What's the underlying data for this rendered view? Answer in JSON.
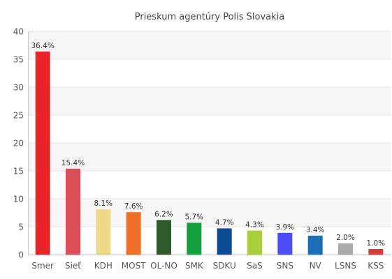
{
  "chart_data": {
    "type": "bar",
    "title": "Prieskum agentúry Polis Slovakia",
    "xlabel": "",
    "ylabel": "",
    "ylim": [
      0,
      40
    ],
    "yticks": [
      0,
      5,
      10,
      15,
      20,
      25,
      30,
      35,
      40
    ],
    "grid": true,
    "legend": "none",
    "categories": [
      "Smer",
      "Sieť",
      "KDH",
      "MOST",
      "OL-NO",
      "SMK",
      "SDKU",
      "SaS",
      "SNS",
      "NV",
      "LSNS",
      "KSS"
    ],
    "values": [
      36.4,
      15.4,
      8.1,
      7.6,
      6.2,
      5.7,
      4.7,
      4.3,
      3.9,
      3.4,
      2.0,
      1.0
    ],
    "data_labels": [
      "36.4%",
      "15.4%",
      "8.1%",
      "7.6%",
      "6.2%",
      "5.7%",
      "4.7%",
      "4.3%",
      "3.9%",
      "3.4%",
      "2.0%",
      "1.0%"
    ],
    "colors": [
      "#e8232a",
      "#d94f55",
      "#eed98a",
      "#ec7028",
      "#2e5a2c",
      "#13a03c",
      "#0c4a94",
      "#a6cf3b",
      "#4d4dfa",
      "#1a6fb8",
      "#aaaaaa",
      "#d63a3a"
    ]
  }
}
